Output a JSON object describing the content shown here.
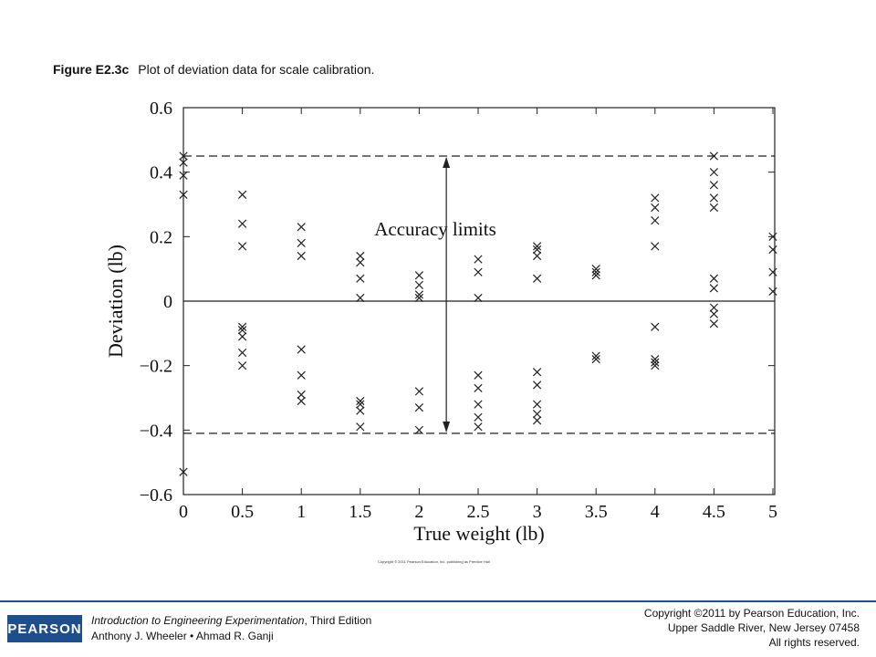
{
  "caption": {
    "figure_label": "Figure E2.3c",
    "text": "Plot of deviation data for scale calibration."
  },
  "chart_data": {
    "type": "scatter",
    "title": "",
    "xlabel": "True weight (lb)",
    "ylabel": "Deviation (lb)",
    "xlim": [
      0,
      5
    ],
    "ylim": [
      -0.6,
      0.6
    ],
    "x_ticks": [
      "0",
      "0.5",
      "1",
      "1.5",
      "2",
      "2.5",
      "3",
      "3.5",
      "4",
      "4.5",
      "5"
    ],
    "y_ticks": [
      "−0.6",
      "−0.4",
      "−0.2",
      "0",
      "0.2",
      "0.4",
      "0.6"
    ],
    "grid": false,
    "marker": "x",
    "points": [
      {
        "x": 0,
        "y": 0.45
      },
      {
        "x": 0,
        "y": 0.43
      },
      {
        "x": 0,
        "y": 0.39
      },
      {
        "x": 0,
        "y": 0.33
      },
      {
        "x": 0,
        "y": -0.53
      },
      {
        "x": 0.5,
        "y": 0.33
      },
      {
        "x": 0.5,
        "y": 0.24
      },
      {
        "x": 0.5,
        "y": 0.17
      },
      {
        "x": 0.5,
        "y": -0.08
      },
      {
        "x": 0.5,
        "y": -0.09
      },
      {
        "x": 0.5,
        "y": -0.11
      },
      {
        "x": 0.5,
        "y": -0.16
      },
      {
        "x": 0.5,
        "y": -0.2
      },
      {
        "x": 1,
        "y": 0.23
      },
      {
        "x": 1,
        "y": 0.18
      },
      {
        "x": 1,
        "y": 0.14
      },
      {
        "x": 1,
        "y": -0.15
      },
      {
        "x": 1,
        "y": -0.23
      },
      {
        "x": 1,
        "y": -0.29
      },
      {
        "x": 1,
        "y": -0.31
      },
      {
        "x": 1.5,
        "y": 0.14
      },
      {
        "x": 1.5,
        "y": 0.12
      },
      {
        "x": 1.5,
        "y": 0.07
      },
      {
        "x": 1.5,
        "y": 0.01
      },
      {
        "x": 1.5,
        "y": -0.31
      },
      {
        "x": 1.5,
        "y": -0.32
      },
      {
        "x": 1.5,
        "y": -0.34
      },
      {
        "x": 1.5,
        "y": -0.39
      },
      {
        "x": 2,
        "y": 0.08
      },
      {
        "x": 2,
        "y": 0.05
      },
      {
        "x": 2,
        "y": 0.02
      },
      {
        "x": 2,
        "y": 0.01
      },
      {
        "x": 2,
        "y": -0.28
      },
      {
        "x": 2,
        "y": -0.33
      },
      {
        "x": 2,
        "y": -0.4
      },
      {
        "x": 2.5,
        "y": 0.13
      },
      {
        "x": 2.5,
        "y": 0.09
      },
      {
        "x": 2.5,
        "y": 0.01
      },
      {
        "x": 2.5,
        "y": -0.23
      },
      {
        "x": 2.5,
        "y": -0.27
      },
      {
        "x": 2.5,
        "y": -0.32
      },
      {
        "x": 2.5,
        "y": -0.36
      },
      {
        "x": 2.5,
        "y": -0.39
      },
      {
        "x": 3,
        "y": 0.17
      },
      {
        "x": 3,
        "y": 0.16
      },
      {
        "x": 3,
        "y": 0.14
      },
      {
        "x": 3,
        "y": 0.07
      },
      {
        "x": 3,
        "y": -0.22
      },
      {
        "x": 3,
        "y": -0.26
      },
      {
        "x": 3,
        "y": -0.32
      },
      {
        "x": 3,
        "y": -0.35
      },
      {
        "x": 3,
        "y": -0.37
      },
      {
        "x": 3.5,
        "y": 0.1
      },
      {
        "x": 3.5,
        "y": 0.09
      },
      {
        "x": 3.5,
        "y": 0.08
      },
      {
        "x": 3.5,
        "y": -0.17
      },
      {
        "x": 3.5,
        "y": -0.18
      },
      {
        "x": 4,
        "y": 0.32
      },
      {
        "x": 4,
        "y": 0.29
      },
      {
        "x": 4,
        "y": 0.25
      },
      {
        "x": 4,
        "y": 0.17
      },
      {
        "x": 4,
        "y": -0.08
      },
      {
        "x": 4,
        "y": -0.18
      },
      {
        "x": 4,
        "y": -0.19
      },
      {
        "x": 4,
        "y": -0.2
      },
      {
        "x": 4.5,
        "y": 0.45
      },
      {
        "x": 4.5,
        "y": 0.4
      },
      {
        "x": 4.5,
        "y": 0.36
      },
      {
        "x": 4.5,
        "y": 0.32
      },
      {
        "x": 4.5,
        "y": 0.29
      },
      {
        "x": 4.5,
        "y": 0.07
      },
      {
        "x": 4.5,
        "y": 0.04
      },
      {
        "x": 4.5,
        "y": -0.02
      },
      {
        "x": 4.5,
        "y": -0.04
      },
      {
        "x": 4.5,
        "y": -0.07
      },
      {
        "x": 5,
        "y": 0.2
      },
      {
        "x": 5,
        "y": 0.16
      },
      {
        "x": 5,
        "y": 0.09
      },
      {
        "x": 5,
        "y": 0.03
      }
    ],
    "reference_lines": [
      {
        "y": 0.45,
        "style": "dashed"
      },
      {
        "y": -0.41,
        "style": "dashed"
      },
      {
        "y": 0,
        "style": "solid"
      }
    ],
    "annotation": {
      "text": "Accuracy limits",
      "arrow_x": 2.23,
      "arrow_from": 0.45,
      "arrow_to": -0.41
    }
  },
  "plot_copyright": "Copyright © 2011 Pearson Education, Inc. publishing as Prentice Hall",
  "footer": {
    "logo": "PEARSON",
    "book_title": "Introduction to Engineering Experimentation",
    "edition": ", Third Edition",
    "authors": "Anthony J. Wheeler • Ahmad R. Ganji",
    "copyright_line1": "Copyright ©2011 by Pearson Education, Inc.",
    "copyright_line2": "Upper Saddle River, New Jersey 07458",
    "copyright_line3": "All rights reserved."
  }
}
